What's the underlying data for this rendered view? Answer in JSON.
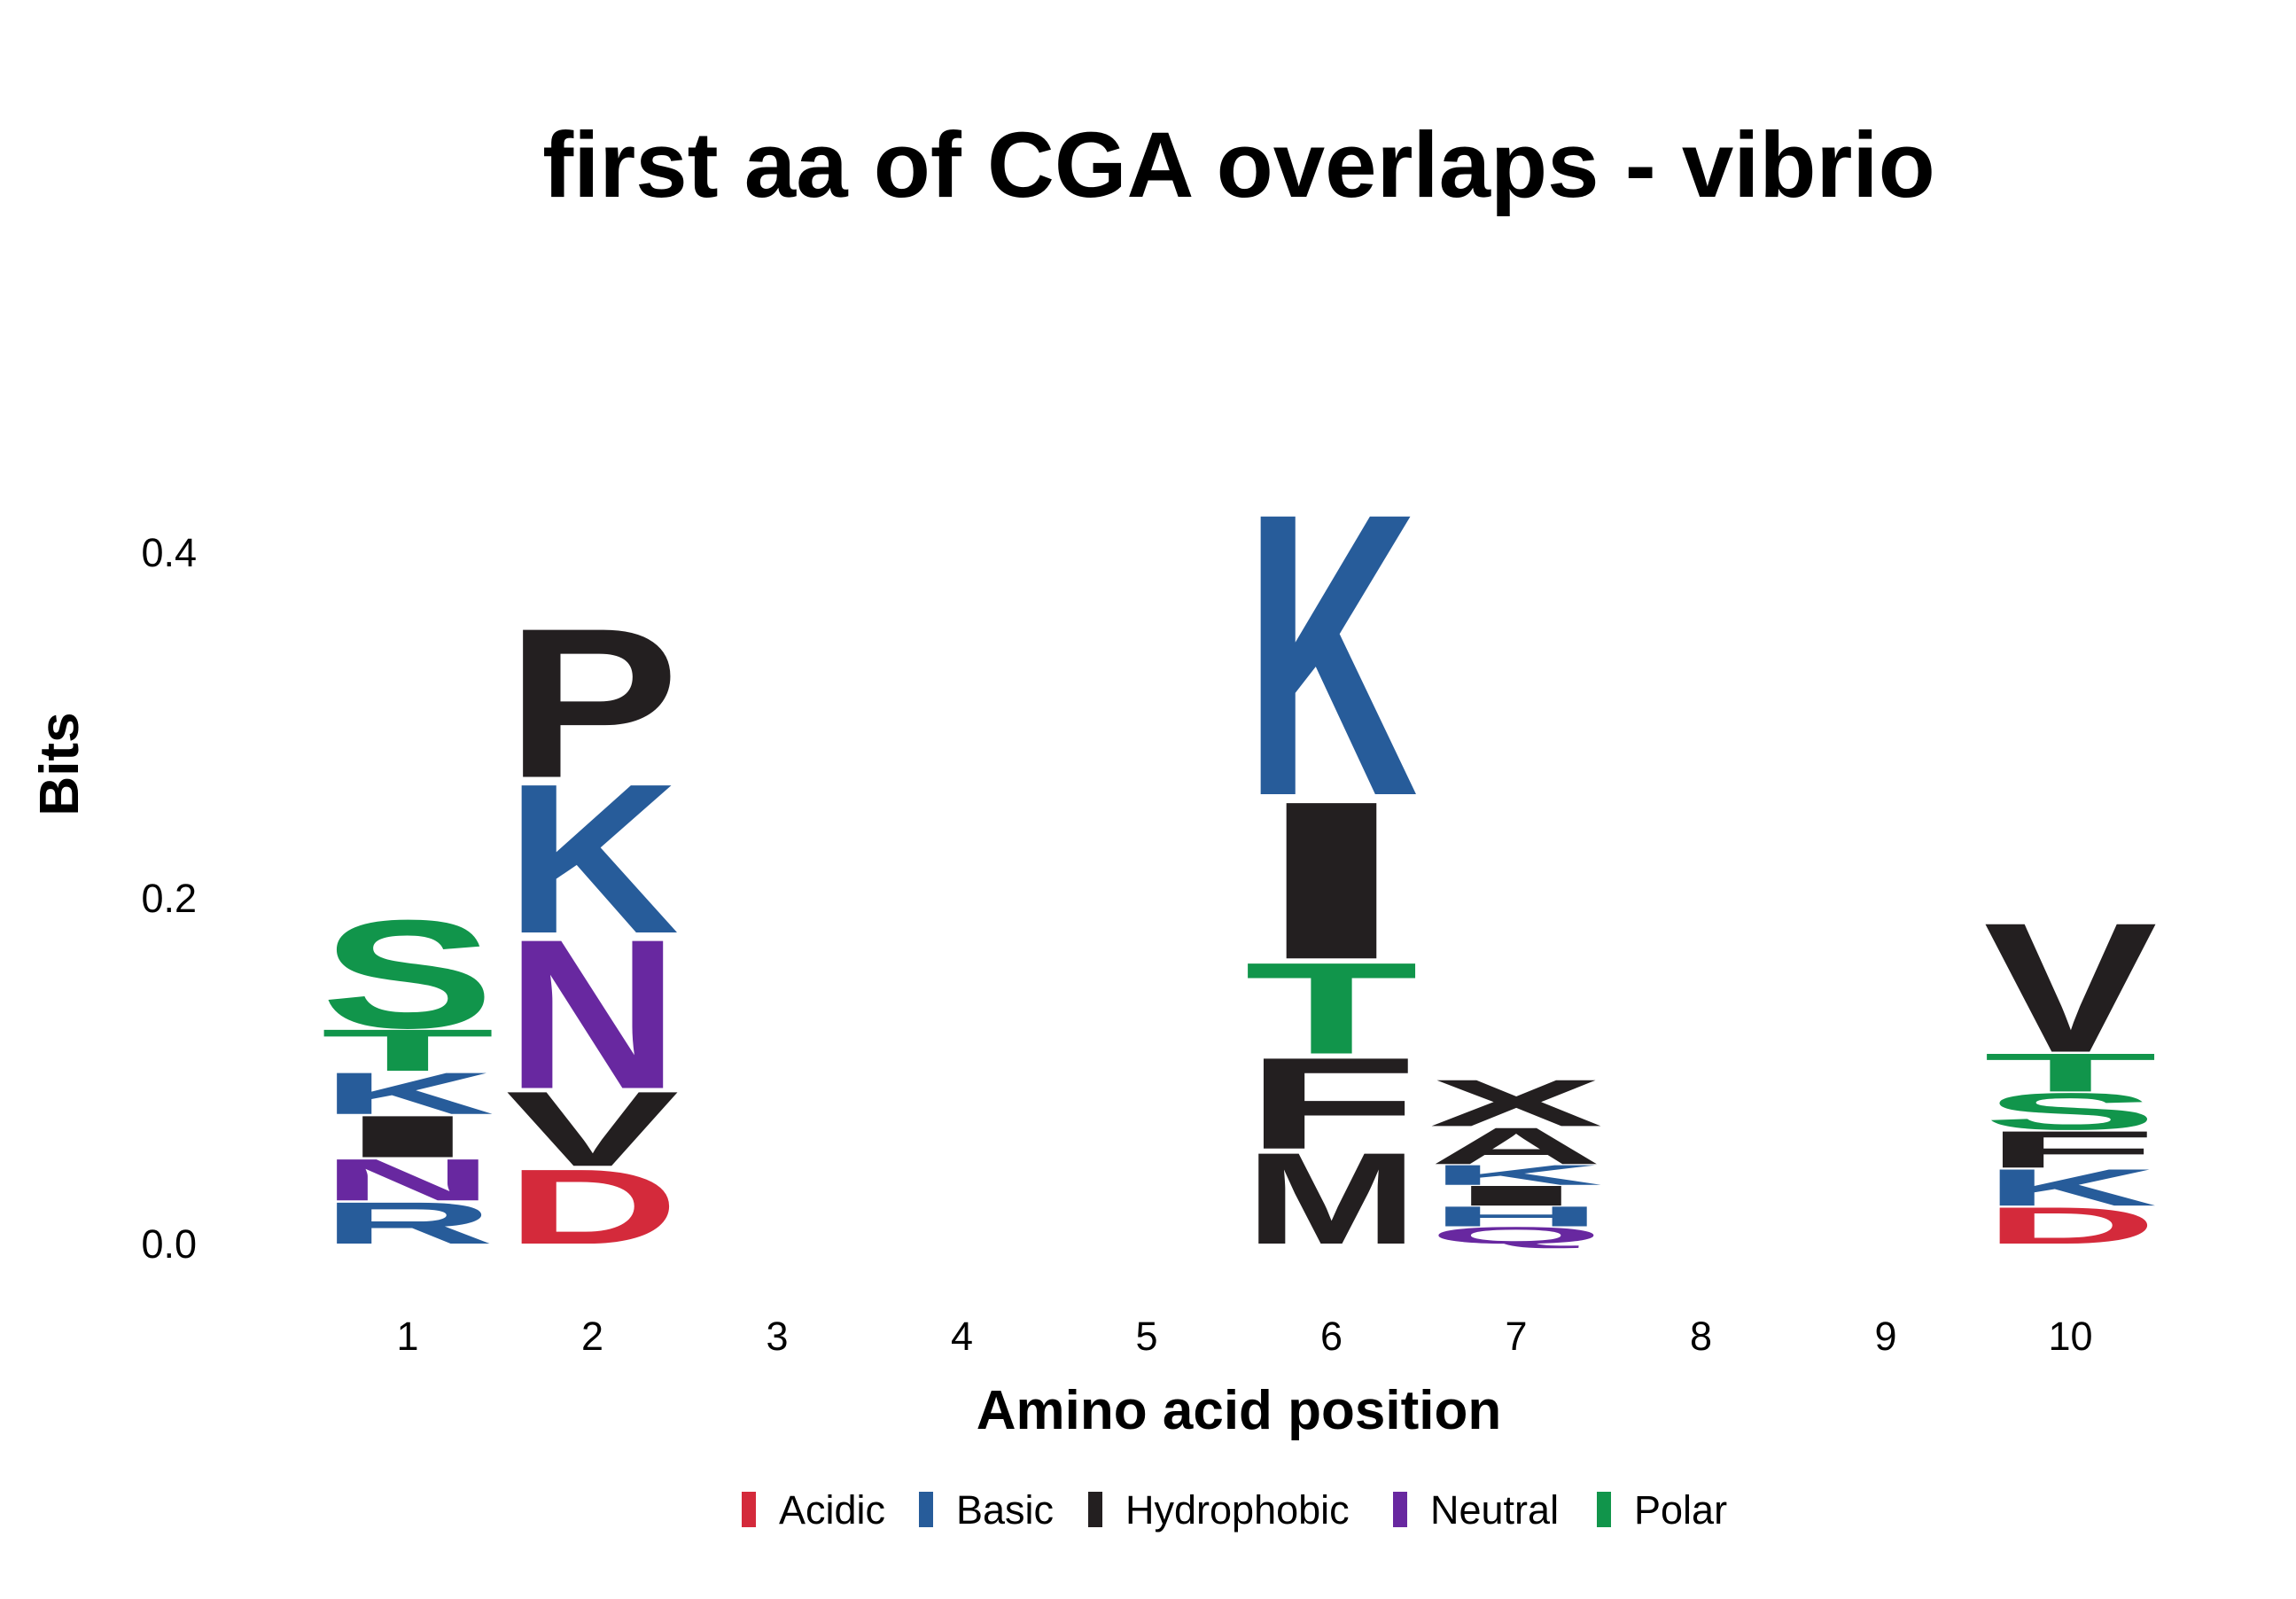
{
  "chart_data": {
    "type": "sequence-logo",
    "title": "first aa of CGA overlaps - vibrio",
    "xlabel": "Amino acid position",
    "ylabel": "Bits",
    "ylim": [
      0,
      0.45
    ],
    "yticks": [
      "0.0",
      "0.2",
      "0.4"
    ],
    "ytick_values": [
      0.0,
      0.2,
      0.4
    ],
    "positions": [
      "1",
      "2",
      "3",
      "4",
      "5",
      "6",
      "7",
      "8",
      "9",
      "10"
    ],
    "legend": [
      {
        "name": "Acidic",
        "color": "#d42a3b"
      },
      {
        "name": "Basic",
        "color": "#275c9a"
      },
      {
        "name": "Hydrophobic",
        "color": "#231f20"
      },
      {
        "name": "Neutral",
        "color": "#6828a0"
      },
      {
        "name": "Polar",
        "color": "#11954b"
      }
    ],
    "stacks": [
      {
        "position": "1",
        "letters": [
          {
            "letter": "R",
            "class": "Basic",
            "bits": 0.025
          },
          {
            "letter": "N",
            "class": "Neutral",
            "bits": 0.025
          },
          {
            "letter": "I",
            "class": "Hydrophobic",
            "bits": 0.025
          },
          {
            "letter": "K",
            "class": "Basic",
            "bits": 0.025
          },
          {
            "letter": "T",
            "class": "Polar",
            "bits": 0.025
          },
          {
            "letter": "S",
            "class": "Polar",
            "bits": 0.065
          }
        ]
      },
      {
        "position": "2",
        "letters": [
          {
            "letter": "D",
            "class": "Acidic",
            "bits": 0.045
          },
          {
            "letter": "V",
            "class": "Hydrophobic",
            "bits": 0.045
          },
          {
            "letter": "N",
            "class": "Neutral",
            "bits": 0.09
          },
          {
            "letter": "K",
            "class": "Basic",
            "bits": 0.09
          },
          {
            "letter": "P",
            "class": "Hydrophobic",
            "bits": 0.09
          }
        ]
      },
      {
        "position": "3",
        "letters": []
      },
      {
        "position": "4",
        "letters": []
      },
      {
        "position": "5",
        "letters": []
      },
      {
        "position": "6",
        "letters": [
          {
            "letter": "M",
            "class": "Hydrophobic",
            "bits": 0.055
          },
          {
            "letter": "F",
            "class": "Hydrophobic",
            "bits": 0.055
          },
          {
            "letter": "T",
            "class": "Polar",
            "bits": 0.055
          },
          {
            "letter": "I",
            "class": "Hydrophobic",
            "bits": 0.095
          },
          {
            "letter": "K",
            "class": "Basic",
            "bits": 0.17
          }
        ]
      },
      {
        "position": "7",
        "letters": [
          {
            "letter": "Q",
            "class": "Neutral",
            "bits": 0.01
          },
          {
            "letter": "H",
            "class": "Basic",
            "bits": 0.012
          },
          {
            "letter": "I",
            "class": "Hydrophobic",
            "bits": 0.012
          },
          {
            "letter": "K",
            "class": "Basic",
            "bits": 0.012
          },
          {
            "letter": "A",
            "class": "Hydrophobic",
            "bits": 0.022
          },
          {
            "letter": "X",
            "class": "Hydrophobic",
            "bits": 0.028
          }
        ]
      },
      {
        "position": "8",
        "letters": []
      },
      {
        "position": "9",
        "letters": []
      },
      {
        "position": "10",
        "letters": [
          {
            "letter": "D",
            "class": "Acidic",
            "bits": 0.022
          },
          {
            "letter": "K",
            "class": "Basic",
            "bits": 0.022
          },
          {
            "letter": "F",
            "class": "Hydrophobic",
            "bits": 0.022
          },
          {
            "letter": "S",
            "class": "Polar",
            "bits": 0.022
          },
          {
            "letter": "T",
            "class": "Polar",
            "bits": 0.023
          },
          {
            "letter": "V",
            "class": "Hydrophobic",
            "bits": 0.078
          }
        ]
      }
    ]
  }
}
